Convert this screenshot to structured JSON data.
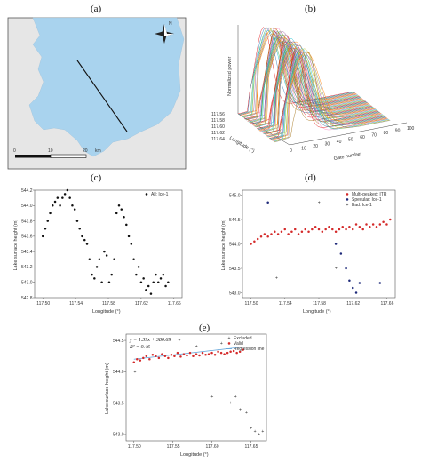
{
  "panels": {
    "a": {
      "label": "(a)"
    },
    "b": {
      "label": "(b)"
    },
    "c": {
      "label": "(c)"
    },
    "d": {
      "label": "(d)"
    },
    "e": {
      "label": "(e)"
    }
  },
  "map": {
    "north_label": "N",
    "scale_ticks": [
      "0",
      "10",
      "20"
    ],
    "scale_unit": "km",
    "colors": {
      "water": "#a9d3ee",
      "land": "#e6e6e6",
      "track": "#111111"
    }
  },
  "chart_data": [
    {
      "id": "b",
      "type": "line",
      "title": "",
      "xlabel": "Gate number",
      "ylabel": "Normalized power",
      "zlabel": "Longitude (°)",
      "x_ticks": [
        "0",
        "10",
        "20",
        "30",
        "40",
        "50",
        "60",
        "70",
        "80",
        "90",
        "100"
      ],
      "y_ticks": [
        "117.56",
        "117.58",
        "117.60",
        "117.62",
        "117.64"
      ]
    },
    {
      "id": "c",
      "type": "scatter",
      "xlabel": "Longitude (°)",
      "ylabel": "Lake surface height (m)",
      "xlim": [
        117.49,
        117.67
      ],
      "ylim": [
        542.8,
        544.2
      ],
      "x_ticks": [
        "117.50",
        "117.54",
        "117.58",
        "117.62",
        "117.66"
      ],
      "y_ticks": [
        "542.8",
        "543.0",
        "543.2",
        "543.4",
        "543.6",
        "543.8",
        "544.0",
        "544.2"
      ],
      "series": [
        {
          "name": "All: Ice-1",
          "color": "#111111",
          "x": [
            117.5,
            117.503,
            117.506,
            117.509,
            117.512,
            117.515,
            117.518,
            117.521,
            117.524,
            117.527,
            117.53,
            117.533,
            117.536,
            117.539,
            117.542,
            117.545,
            117.548,
            117.551,
            117.554,
            117.557,
            117.56,
            117.563,
            117.566,
            117.569,
            117.572,
            117.575,
            117.578,
            117.581,
            117.584,
            117.587,
            117.59,
            117.593,
            117.596,
            117.599,
            117.602,
            117.605,
            117.608,
            117.611,
            117.614,
            117.617,
            117.62,
            117.623,
            117.626,
            117.629,
            117.632,
            117.635,
            117.638,
            117.641,
            117.644,
            117.647,
            117.65,
            117.653
          ],
          "y": [
            543.6,
            543.7,
            543.8,
            543.9,
            544.0,
            544.05,
            544.1,
            544.0,
            544.1,
            544.15,
            544.2,
            544.1,
            544.0,
            543.95,
            543.8,
            543.7,
            543.6,
            543.55,
            543.5,
            543.3,
            543.1,
            543.05,
            543.2,
            543.3,
            543.0,
            543.4,
            543.35,
            543.0,
            543.1,
            543.3,
            543.9,
            544.0,
            543.95,
            543.85,
            543.75,
            543.6,
            543.5,
            543.3,
            543.1,
            543.2,
            543.0,
            543.05,
            542.9,
            542.95,
            542.85,
            543.0,
            543.1,
            543.0,
            543.05,
            543.1,
            542.95,
            543.0
          ]
        }
      ]
    },
    {
      "id": "d",
      "type": "scatter",
      "xlabel": "Longitude (°)",
      "ylabel": "Lake surface height (m)",
      "xlim": [
        117.49,
        117.67
      ],
      "ylim": [
        542.9,
        545.1
      ],
      "x_ticks": [
        "117.50",
        "117.54",
        "117.58",
        "117.62",
        "117.66"
      ],
      "y_ticks": [
        "543.0",
        "543.5",
        "544.0",
        "544.5",
        "545.0"
      ],
      "series": [
        {
          "name": "Multi-peaked: ITR",
          "color": "#d42a2a",
          "x": [
            117.5,
            117.504,
            117.508,
            117.512,
            117.516,
            117.52,
            117.524,
            117.528,
            117.532,
            117.536,
            117.54,
            117.544,
            117.548,
            117.552,
            117.556,
            117.56,
            117.564,
            117.568,
            117.572,
            117.576,
            117.58,
            117.584,
            117.588,
            117.592,
            117.596,
            117.6,
            117.604,
            117.608,
            117.612,
            117.616,
            117.62,
            117.624,
            117.628,
            117.632,
            117.636,
            117.64,
            117.644,
            117.648,
            117.652,
            117.656,
            117.66,
            117.664
          ],
          "y": [
            544.0,
            544.05,
            544.1,
            544.15,
            544.2,
            544.15,
            544.2,
            544.25,
            544.2,
            544.25,
            544.3,
            544.2,
            544.25,
            544.3,
            544.2,
            544.25,
            544.3,
            544.25,
            544.3,
            544.35,
            544.3,
            544.25,
            544.3,
            544.35,
            544.3,
            544.25,
            544.3,
            544.35,
            544.3,
            544.35,
            544.3,
            544.4,
            544.35,
            544.3,
            544.4,
            544.35,
            544.4,
            544.35,
            544.4,
            544.45,
            544.4,
            544.5
          ]
        },
        {
          "name": "Specular: Ice-1",
          "color": "#1f2a7a",
          "x": [
            117.52,
            117.6,
            117.606,
            117.612,
            117.616,
            117.62,
            117.624,
            117.628,
            117.652
          ],
          "y": [
            544.85,
            544.0,
            543.8,
            543.5,
            543.25,
            543.1,
            543.0,
            543.2,
            543.2
          ]
        },
        {
          "name": "Bad: Ice-1",
          "color": "#888888",
          "x": [
            117.53,
            117.58,
            117.6
          ],
          "y": [
            543.3,
            544.85,
            543.5
          ]
        }
      ]
    },
    {
      "id": "e",
      "type": "scatter",
      "xlabel": "Longitude (°)",
      "ylabel": "Lake surface height (m)",
      "xlim": [
        117.49,
        117.67
      ],
      "ylim": [
        542.9,
        544.6
      ],
      "x_ticks": [
        "117.50",
        "117.55",
        "117.60",
        "117.65"
      ],
      "y_ticks": [
        "543.0",
        "543.5",
        "544.0",
        "544.5"
      ],
      "annotations": [
        "y = 1.39x + 380.69",
        "R² = 0.46"
      ],
      "regression": {
        "slope": 1.39,
        "intercept": 380.69
      },
      "series": [
        {
          "name": "Excluded",
          "color": "#999999",
          "x": [
            117.501,
            117.558,
            117.58,
            117.6,
            117.612,
            117.624,
            117.63,
            117.636,
            117.644,
            117.65,
            117.655,
            117.66,
            117.665
          ],
          "y": [
            544.0,
            544.5,
            544.4,
            543.6,
            544.45,
            543.5,
            543.6,
            543.4,
            543.35,
            543.1,
            543.05,
            543.0,
            543.05
          ]
        },
        {
          "name": "Valid",
          "color": "#d42a2a",
          "x": [
            117.5,
            117.504,
            117.508,
            117.512,
            117.516,
            117.52,
            117.524,
            117.528,
            117.532,
            117.536,
            117.54,
            117.544,
            117.548,
            117.552,
            117.556,
            117.56,
            117.564,
            117.568,
            117.572,
            117.576,
            117.58,
            117.584,
            117.588,
            117.592,
            117.596,
            117.6,
            117.604,
            117.608,
            117.612,
            117.616,
            117.62,
            117.624,
            117.628,
            117.632,
            117.636,
            117.64
          ],
          "y": [
            544.15,
            544.2,
            544.18,
            544.22,
            544.25,
            544.2,
            544.27,
            544.25,
            544.22,
            544.28,
            544.25,
            544.22,
            544.27,
            544.25,
            544.3,
            544.24,
            544.28,
            544.26,
            544.3,
            544.25,
            544.28,
            544.26,
            544.3,
            544.27,
            544.28,
            544.3,
            544.27,
            544.32,
            544.3,
            544.28,
            544.3,
            544.32,
            544.33,
            544.3,
            544.32,
            544.35
          ]
        },
        {
          "name": "Regression line",
          "color": "#5aa0d8"
        }
      ]
    }
  ]
}
